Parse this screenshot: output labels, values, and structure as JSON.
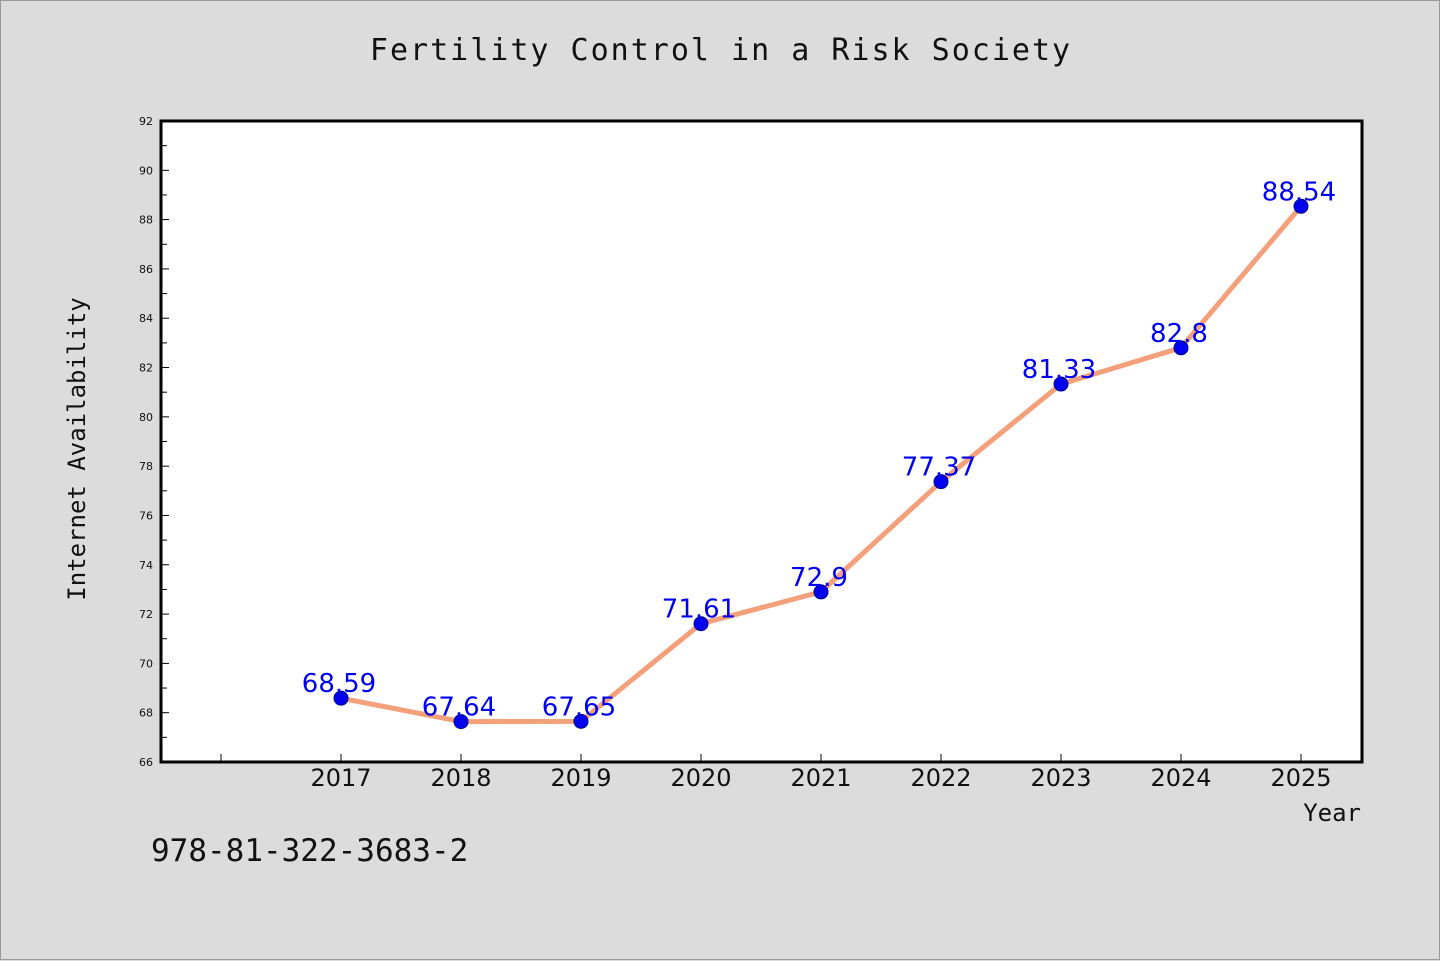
{
  "colors": {
    "line": "#f4a07a",
    "marker": "#0000ee",
    "label": "#0000ee",
    "plot_bg": "#ffffff",
    "page_bg": "#dcdcdc"
  },
  "footer": {
    "isbn": "978-81-322-3683-2"
  },
  "chart_data": {
    "type": "line",
    "title": "Fertility Control in a Risk Society",
    "xlabel": "Year",
    "ylabel": "Internet Availability",
    "categories": [
      "2017",
      "2018",
      "2019",
      "2020",
      "2021",
      "2022",
      "2023",
      "2024",
      "2025"
    ],
    "series": [
      {
        "values": [
          68.59,
          67.64,
          67.65,
          71.61,
          72.9,
          77.37,
          81.33,
          82.8,
          88.54
        ],
        "labels": [
          "68.59",
          "67.64",
          "67.65",
          "71.61",
          "72.9",
          "77.37",
          "81.33",
          "82.8",
          "88.54"
        ]
      }
    ],
    "ylim": [
      66,
      92
    ],
    "yticks": [
      "66",
      "68",
      "70",
      "72",
      "74",
      "76",
      "78",
      "80",
      "82",
      "84",
      "86",
      "88",
      "90",
      "92"
    ],
    "grid": false,
    "legend": "none"
  }
}
